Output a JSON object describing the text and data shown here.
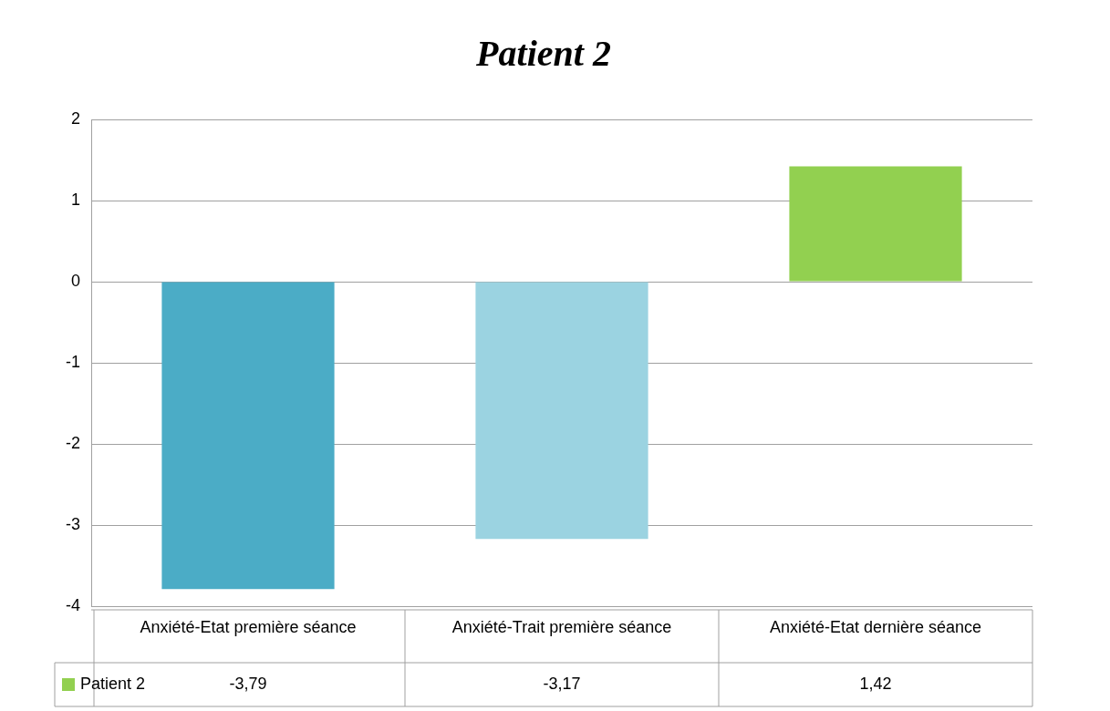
{
  "chart_data": {
    "type": "bar",
    "title": "Patient 2",
    "categories": [
      "Anxiété-Etat première séance",
      "Anxiété-Trait première séance",
      "Anxiété-Etat dernière séance"
    ],
    "series": [
      {
        "name": "Patient 2",
        "color": "#92d050",
        "colors": [
          "#4bacc6",
          "#9bd3e1",
          "#92d050"
        ],
        "values": [
          -3.79,
          -3.17,
          1.42
        ],
        "value_labels": [
          "-3,79",
          "-3,17",
          "1,42"
        ]
      }
    ],
    "ylim": [
      -4,
      2
    ],
    "yticks": [
      -4,
      -3,
      -2,
      -1,
      0,
      1,
      2
    ],
    "grid": "y",
    "legend": "bottom"
  }
}
